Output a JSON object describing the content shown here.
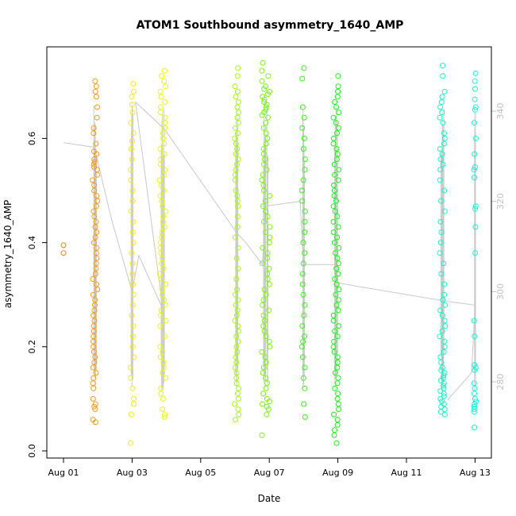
{
  "chart_data": {
    "type": "scatter",
    "title": "ATOM1 Southbound asymmetry_1640_AMP",
    "xlabel": "Date",
    "ylabel": "asymmetry_1640_AMP",
    "x_range_days": [
      0,
      12.9
    ],
    "ylim": [
      0,
      0.75
    ],
    "y2lim": [
      263,
      350
    ],
    "x_ticks": [
      {
        "day": 0,
        "label": "Aug 01"
      },
      {
        "day": 2,
        "label": "Aug 03"
      },
      {
        "day": 4,
        "label": "Aug 05"
      },
      {
        "day": 6,
        "label": "Aug 07"
      },
      {
        "day": 8,
        "label": "Aug 09"
      },
      {
        "day": 10,
        "label": "Aug 11"
      },
      {
        "day": 12,
        "label": "Aug 13"
      }
    ],
    "y_ticks": [
      {
        "value": 0.0,
        "label": "0.0"
      },
      {
        "value": 0.2,
        "label": "0.2"
      },
      {
        "value": 0.4,
        "label": "0.4"
      },
      {
        "value": 0.6,
        "label": "0.6"
      }
    ],
    "y2_ticks": [
      {
        "value": 280,
        "label": "280"
      },
      {
        "value": 300,
        "label": "300"
      },
      {
        "value": 320,
        "label": "320"
      },
      {
        "value": 340,
        "label": "340"
      }
    ],
    "secondary_line_color": "#c8c8c8",
    "grid": false,
    "series": [
      {
        "name": "",
        "day": 0.0,
        "spread": 0.0,
        "color": "#e8821a",
        "values": [
          0.395,
          0.38
        ]
      },
      {
        "name": "",
        "day": 0.92,
        "spread": 0.07,
        "color": "#f39a1b",
        "values": [
          0.71,
          0.7,
          0.69,
          0.68,
          0.66,
          0.64,
          0.62,
          0.61,
          0.59,
          0.575,
          0.57,
          0.56,
          0.555,
          0.55,
          0.545,
          0.54,
          0.53,
          0.52,
          0.51,
          0.5,
          0.49,
          0.48,
          0.47,
          0.46,
          0.45,
          0.44,
          0.43,
          0.42,
          0.41,
          0.4,
          0.39,
          0.38,
          0.37,
          0.36,
          0.35,
          0.34,
          0.33,
          0.32,
          0.31,
          0.3,
          0.29,
          0.28,
          0.27,
          0.26,
          0.25,
          0.24,
          0.23,
          0.22,
          0.21,
          0.2,
          0.19,
          0.18,
          0.17,
          0.16,
          0.15,
          0.14,
          0.13,
          0.12,
          0.1,
          0.09,
          0.085,
          0.08,
          0.06,
          0.055
        ]
      },
      {
        "name": "",
        "day": 2.0,
        "spread": 0.05,
        "color": "#f5e81a",
        "values": [
          0.705,
          0.69,
          0.68,
          0.665,
          0.65,
          0.63,
          0.61,
          0.595,
          0.58,
          0.56,
          0.54,
          0.52,
          0.5,
          0.48,
          0.46,
          0.44,
          0.42,
          0.4,
          0.38,
          0.36,
          0.34,
          0.32,
          0.3,
          0.28,
          0.26,
          0.24,
          0.22,
          0.2,
          0.18,
          0.16,
          0.14,
          0.12,
          0.1,
          0.09,
          0.07,
          0.015
        ]
      },
      {
        "name": "",
        "day": 2.9,
        "spread": 0.09,
        "color": "#e6f51a",
        "values": [
          0.73,
          0.72,
          0.71,
          0.7,
          0.69,
          0.68,
          0.67,
          0.66,
          0.65,
          0.64,
          0.63,
          0.62,
          0.61,
          0.6,
          0.59,
          0.58,
          0.57,
          0.56,
          0.55,
          0.54,
          0.53,
          0.52,
          0.51,
          0.5,
          0.49,
          0.48,
          0.47,
          0.46,
          0.45,
          0.44,
          0.43,
          0.42,
          0.41,
          0.4,
          0.39,
          0.38,
          0.37,
          0.36,
          0.35,
          0.34,
          0.33,
          0.32,
          0.31,
          0.3,
          0.29,
          0.28,
          0.27,
          0.26,
          0.25,
          0.24,
          0.22,
          0.2,
          0.19,
          0.18,
          0.17,
          0.16,
          0.15,
          0.14,
          0.12,
          0.11,
          0.1,
          0.08,
          0.07,
          0.065
        ]
      },
      {
        "name": "",
        "day": 5.05,
        "spread": 0.06,
        "color": "#a6f51a",
        "values": [
          0.735,
          0.72,
          0.7,
          0.69,
          0.68,
          0.67,
          0.66,
          0.65,
          0.64,
          0.63,
          0.62,
          0.61,
          0.6,
          0.59,
          0.58,
          0.57,
          0.56,
          0.55,
          0.54,
          0.53,
          0.52,
          0.5,
          0.49,
          0.48,
          0.47,
          0.45,
          0.43,
          0.41,
          0.39,
          0.37,
          0.35,
          0.33,
          0.31,
          0.3,
          0.29,
          0.28,
          0.27,
          0.26,
          0.25,
          0.24,
          0.23,
          0.22,
          0.21,
          0.2,
          0.19,
          0.18,
          0.17,
          0.16,
          0.15,
          0.14,
          0.13,
          0.12,
          0.11,
          0.1,
          0.09,
          0.08,
          0.07,
          0.06
        ]
      },
      {
        "name": "",
        "day": 5.9,
        "spread": 0.12,
        "color": "#7cf01a",
        "values": [
          0.745,
          0.73,
          0.72,
          0.71,
          0.7,
          0.695,
          0.69,
          0.685,
          0.68,
          0.675,
          0.67,
          0.665,
          0.66,
          0.655,
          0.65,
          0.645,
          0.64,
          0.63,
          0.62,
          0.61,
          0.6,
          0.59,
          0.58,
          0.57,
          0.56,
          0.55,
          0.54,
          0.53,
          0.52,
          0.51,
          0.5,
          0.49,
          0.48,
          0.47,
          0.46,
          0.45,
          0.44,
          0.43,
          0.42,
          0.41,
          0.4,
          0.39,
          0.38,
          0.37,
          0.36,
          0.35,
          0.34,
          0.33,
          0.32,
          0.31,
          0.3,
          0.29,
          0.28,
          0.27,
          0.26,
          0.25,
          0.24,
          0.23,
          0.22,
          0.21,
          0.2,
          0.19,
          0.18,
          0.17,
          0.16,
          0.15,
          0.14,
          0.13,
          0.12,
          0.11,
          0.1,
          0.095,
          0.09,
          0.085,
          0.08,
          0.07,
          0.03
        ]
      },
      {
        "name": "",
        "day": 7.0,
        "spread": 0.05,
        "color": "#3af01a",
        "values": [
          0.735,
          0.715,
          0.66,
          0.64,
          0.62,
          0.6,
          0.58,
          0.56,
          0.54,
          0.52,
          0.5,
          0.48,
          0.46,
          0.44,
          0.42,
          0.4,
          0.38,
          0.36,
          0.34,
          0.32,
          0.3,
          0.28,
          0.26,
          0.24,
          0.22,
          0.21,
          0.2,
          0.18,
          0.16,
          0.14,
          0.12,
          0.09,
          0.065
        ]
      },
      {
        "name": "",
        "day": 7.95,
        "spread": 0.08,
        "color": "#1af01a",
        "values": [
          0.72,
          0.7,
          0.69,
          0.68,
          0.67,
          0.66,
          0.65,
          0.64,
          0.63,
          0.62,
          0.61,
          0.6,
          0.59,
          0.58,
          0.57,
          0.56,
          0.55,
          0.54,
          0.53,
          0.52,
          0.51,
          0.5,
          0.49,
          0.48,
          0.47,
          0.46,
          0.45,
          0.44,
          0.43,
          0.42,
          0.41,
          0.4,
          0.39,
          0.38,
          0.37,
          0.36,
          0.35,
          0.34,
          0.33,
          0.32,
          0.31,
          0.3,
          0.29,
          0.28,
          0.27,
          0.26,
          0.25,
          0.24,
          0.23,
          0.22,
          0.21,
          0.2,
          0.19,
          0.18,
          0.17,
          0.16,
          0.15,
          0.14,
          0.13,
          0.12,
          0.11,
          0.1,
          0.09,
          0.08,
          0.07,
          0.06,
          0.05,
          0.04,
          0.03,
          0.015
        ]
      },
      {
        "name": "",
        "day": 11.05,
        "spread": 0.08,
        "color": "#1af0c8",
        "values": [
          0.74,
          0.72,
          0.69,
          0.68,
          0.67,
          0.66,
          0.65,
          0.64,
          0.63,
          0.61,
          0.6,
          0.59,
          0.58,
          0.57,
          0.56,
          0.55,
          0.54,
          0.52,
          0.5,
          0.48,
          0.46,
          0.44,
          0.42,
          0.4,
          0.38,
          0.36,
          0.34,
          0.32,
          0.3,
          0.29,
          0.28,
          0.27,
          0.26,
          0.25,
          0.24,
          0.23,
          0.22,
          0.21,
          0.2,
          0.19,
          0.18,
          0.17,
          0.16,
          0.155,
          0.15,
          0.145,
          0.14,
          0.135,
          0.13,
          0.125,
          0.12,
          0.115,
          0.11,
          0.105,
          0.1,
          0.095,
          0.09,
          0.085,
          0.08,
          0.075,
          0.07
        ]
      },
      {
        "name": "",
        "day": 12.0,
        "spread": 0.03,
        "color": "#1af0d8",
        "values": [
          0.725,
          0.71,
          0.695,
          0.675,
          0.66,
          0.655,
          0.63,
          0.6,
          0.57,
          0.545,
          0.54,
          0.525,
          0.47,
          0.465,
          0.43,
          0.38,
          0.25,
          0.22,
          0.165,
          0.16,
          0.155,
          0.13,
          0.12,
          0.11,
          0.1,
          0.095,
          0.09,
          0.085,
          0.08,
          0.075,
          0.045
        ]
      }
    ],
    "secondary_line": [
      {
        "day": 0.0,
        "y2": 333
      },
      {
        "day": 0.9,
        "y2": 332
      },
      {
        "day": 1.4,
        "y2": 316
      },
      {
        "day": 2.0,
        "y2": 300
      },
      {
        "day": 2.2,
        "y2": 308
      },
      {
        "day": 2.9,
        "y2": 296
      },
      {
        "day": 2.1,
        "y2": 342
      },
      {
        "day": 2.95,
        "y2": 336
      },
      {
        "day": 5.05,
        "y2": 313
      },
      {
        "day": 5.3,
        "y2": 311
      },
      {
        "day": 5.8,
        "y2": 306
      },
      {
        "day": 5.9,
        "y2": 319
      },
      {
        "day": 6.9,
        "y2": 320
      },
      {
        "day": 7.0,
        "y2": 306
      },
      {
        "day": 7.9,
        "y2": 306
      },
      {
        "day": 7.95,
        "y2": 302
      },
      {
        "day": 8.7,
        "y2": 301
      },
      {
        "day": 11.05,
        "y2": 298
      },
      {
        "day": 12.0,
        "y2": 297
      },
      {
        "day": 11.9,
        "y2": 282
      },
      {
        "day": 11.2,
        "y2": 276
      }
    ]
  }
}
